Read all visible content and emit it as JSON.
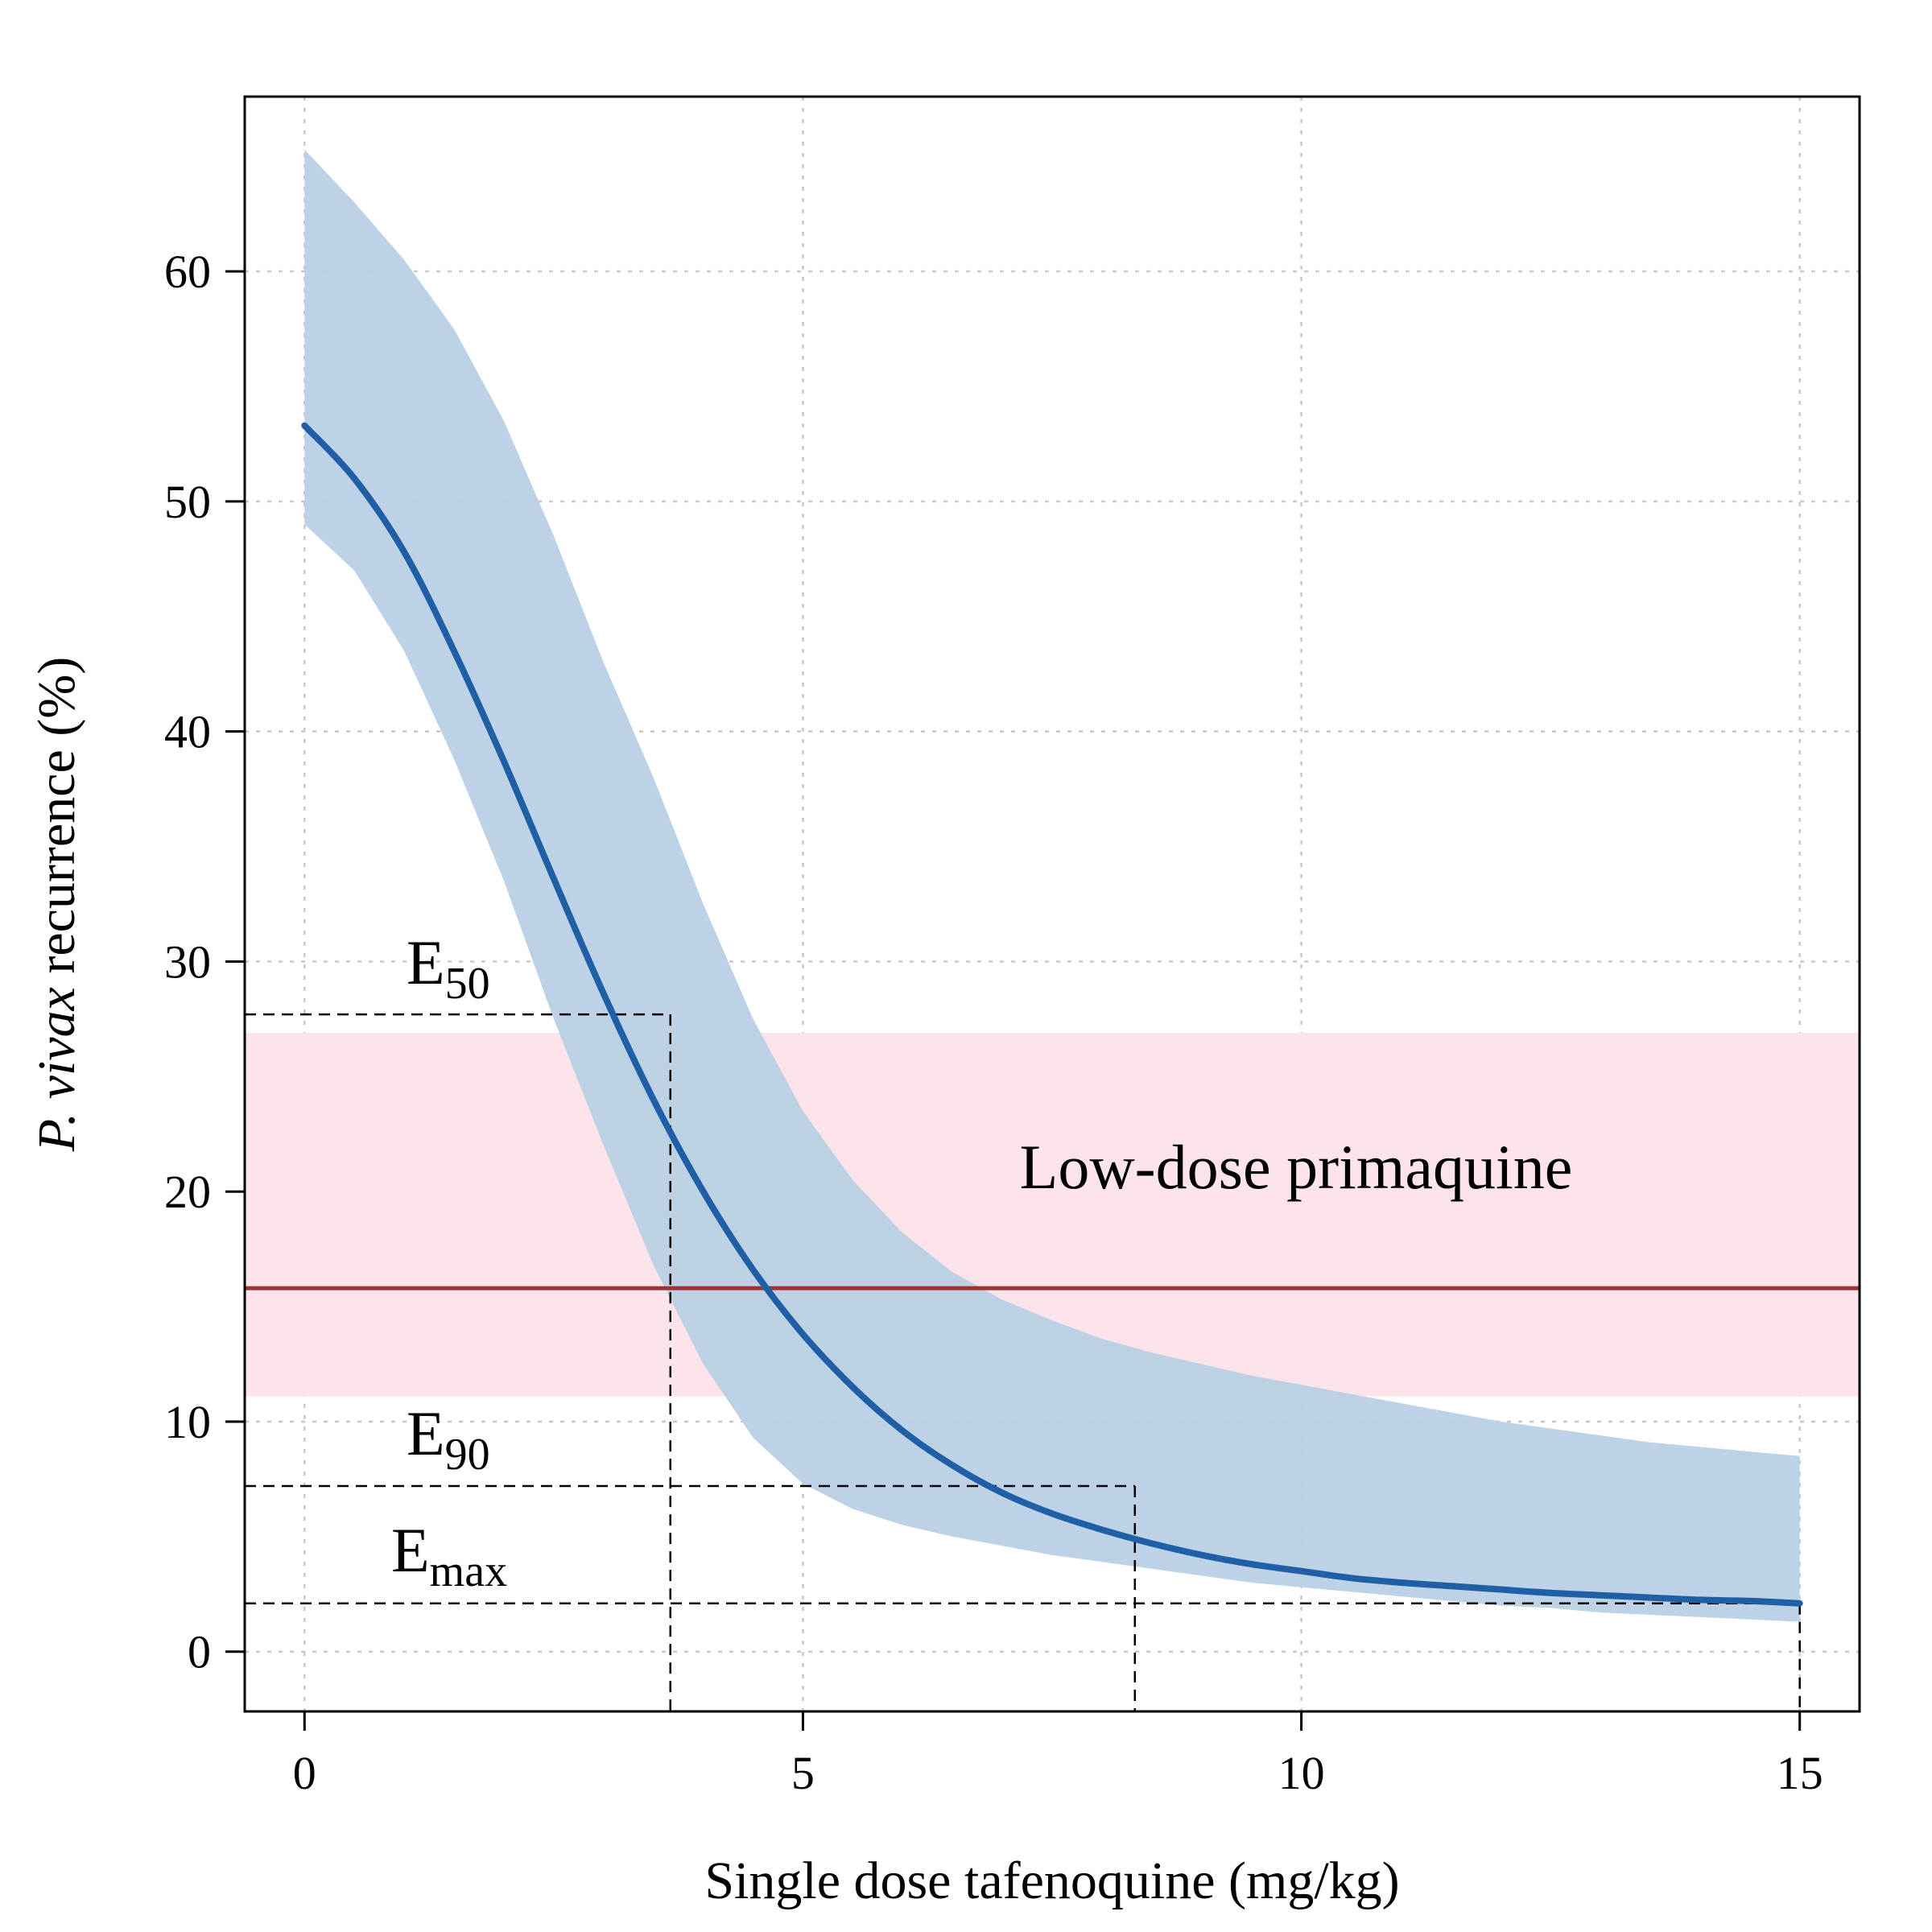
{
  "chart_data": {
    "type": "line",
    "xlabel": "Single dose tafenoquine (mg/kg)",
    "ylabel_italic": "P. vivax",
    "ylabel_rest": " recurrence (%)",
    "xlim": [
      -0.6,
      15.6
    ],
    "ylim": [
      -2.6,
      67.6
    ],
    "x_ticks": [
      0,
      5,
      10,
      15
    ],
    "y_ticks": [
      0,
      10,
      20,
      30,
      40,
      50,
      60
    ],
    "grid": true,
    "x": [
      0,
      0.5,
      1,
      1.5,
      2,
      2.5,
      3,
      3.5,
      4,
      4.5,
      5,
      5.5,
      6,
      6.5,
      7,
      7.5,
      8,
      8.5,
      9,
      9.5,
      10,
      10.5,
      11,
      11.5,
      12,
      12.5,
      13,
      13.5,
      14,
      14.5,
      15
    ],
    "series": [
      {
        "role": "dose-response curve",
        "color": "#1f5fa6",
        "values": [
          53.3,
          51.0,
          47.8,
          43.5,
          38.7,
          33.6,
          28.6,
          24.0,
          20.0,
          16.6,
          13.8,
          11.5,
          9.6,
          8.1,
          6.9,
          6.0,
          5.3,
          4.7,
          4.2,
          3.8,
          3.5,
          3.2,
          3.0,
          2.85,
          2.7,
          2.55,
          2.45,
          2.35,
          2.25,
          2.2,
          2.1
        ]
      }
    ],
    "uncertainty_band": {
      "color": "#b9d0e5",
      "upper": [
        65.3,
        63.0,
        60.5,
        57.5,
        53.5,
        48.5,
        43.0,
        38.0,
        32.5,
        27.5,
        23.5,
        20.5,
        18.2,
        16.5,
        15.3,
        14.4,
        13.6,
        13.0,
        12.5,
        12.0,
        11.6,
        11.2,
        10.8,
        10.4,
        10.0,
        9.7,
        9.4,
        9.1,
        8.9,
        8.7,
        8.5
      ],
      "lower": [
        49.0,
        47.0,
        43.5,
        38.8,
        33.5,
        27.5,
        22.0,
        16.8,
        12.5,
        9.3,
        7.3,
        6.2,
        5.5,
        5.0,
        4.6,
        4.2,
        3.9,
        3.6,
        3.3,
        3.0,
        2.8,
        2.6,
        2.4,
        2.2,
        2.0,
        1.9,
        1.7,
        1.6,
        1.5,
        1.4,
        1.3
      ]
    },
    "reference": {
      "label": "Low-dose primaquine",
      "value": 15.8,
      "band": [
        11.1,
        26.9
      ],
      "line_color": "#9e3337",
      "band_color": "#fce4ea"
    },
    "markers": [
      {
        "label_main": "E",
        "label_sub": "50",
        "x": 3.67,
        "y": 27.7
      },
      {
        "label_main": "E",
        "label_sub": "90",
        "x": 8.33,
        "y": 7.2
      },
      {
        "label_main": "E",
        "label_sub": "max",
        "x": 15,
        "y": 2.1
      }
    ]
  }
}
